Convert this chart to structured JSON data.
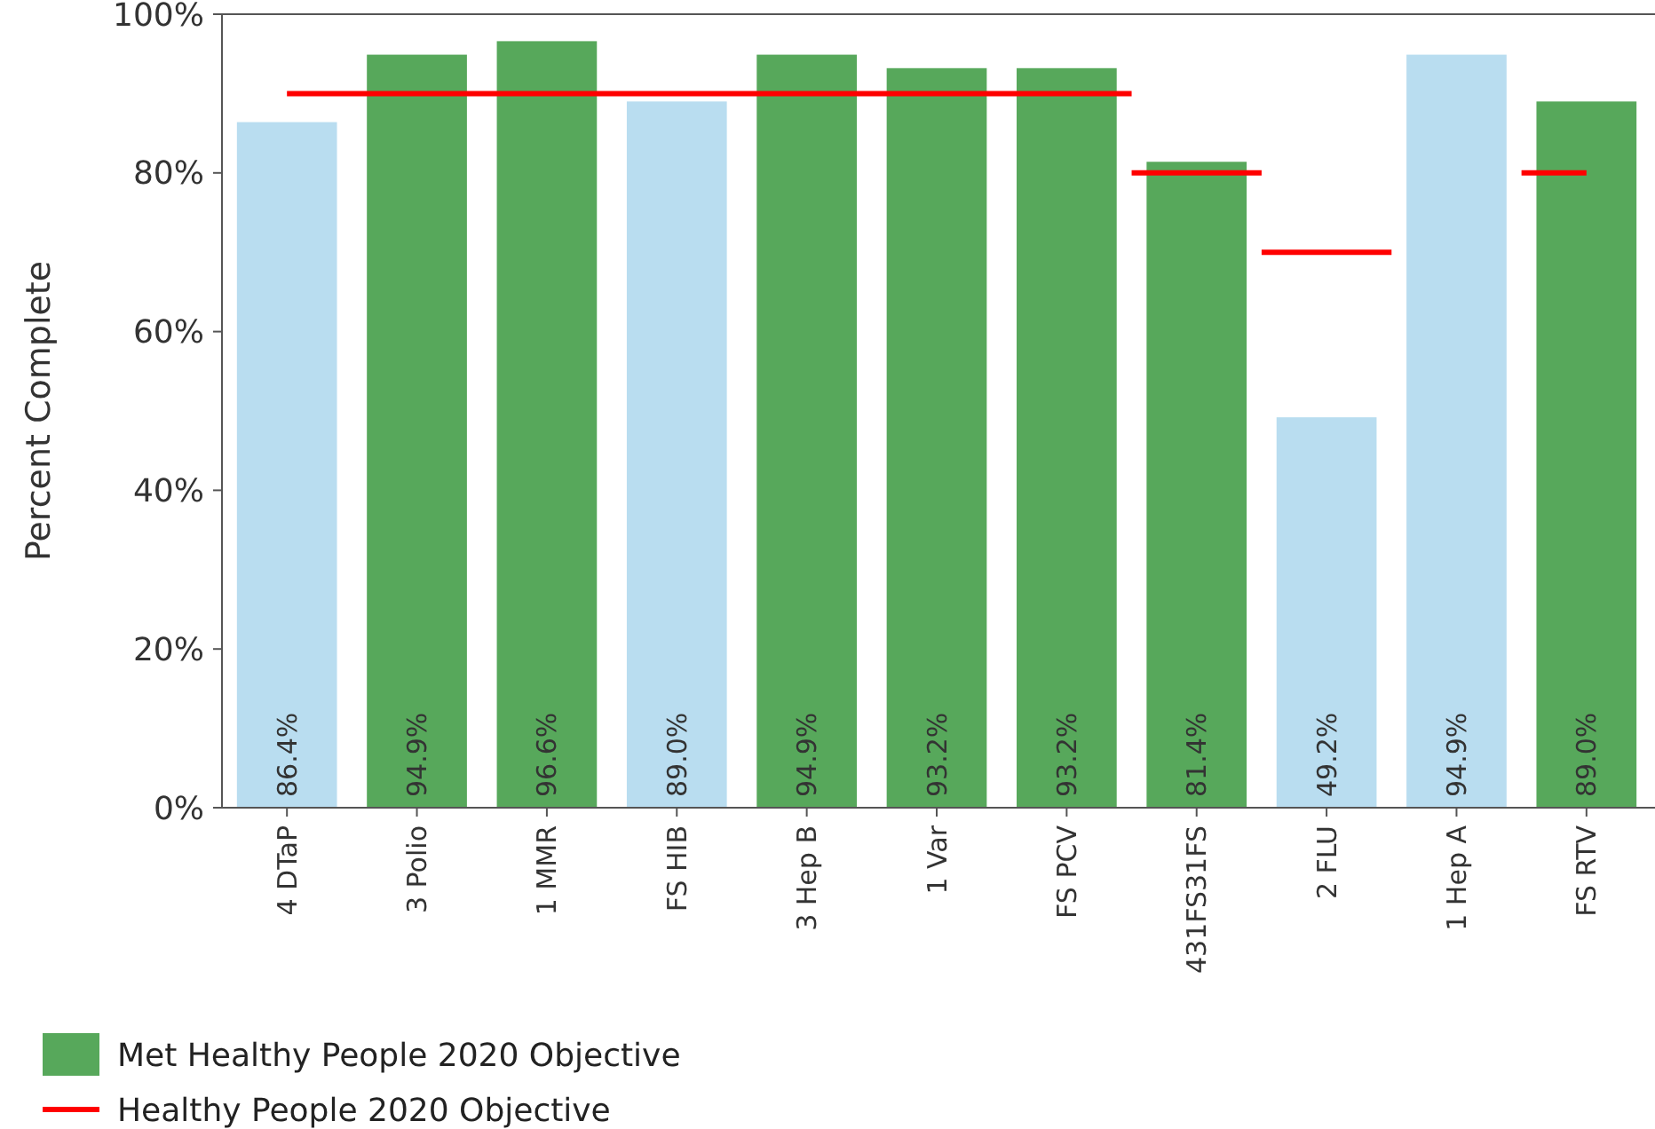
{
  "chart_data": {
    "type": "bar",
    "ylabel": "Percent Complete",
    "categories": [
      "4 DTaP",
      "3 Polio",
      "1 MMR",
      "FS HIB",
      "3 Hep B",
      "1 Var",
      "FS PCV",
      "431FS31FS",
      "2 FLU",
      "1 Hep A",
      "FS RTV"
    ],
    "series": [
      {
        "name": "Met Healthy People 2020 Objective",
        "color": "#57a85b",
        "values": [
          null,
          94.9,
          96.6,
          null,
          94.9,
          93.2,
          93.2,
          81.4,
          null,
          null,
          89.0
        ],
        "value_labels": [
          null,
          "94.9%",
          "96.6%",
          null,
          "94.9%",
          "93.2%",
          "93.2%",
          "81.4%",
          null,
          null,
          "89.0%"
        ]
      },
      {
        "color": "#b9ddf0",
        "values": [
          86.4,
          null,
          null,
          89.0,
          null,
          null,
          null,
          null,
          49.2,
          94.9,
          null
        ],
        "value_labels": [
          "86.4%",
          null,
          null,
          "89.0%",
          null,
          null,
          null,
          null,
          "49.2%",
          "94.9%",
          null
        ]
      },
      {
        "name": "Healthy People 2020 Objective",
        "type": "step",
        "color": "#ff0000",
        "values": [
          90,
          90,
          90,
          90,
          90,
          90,
          90,
          80,
          70,
          null,
          80
        ]
      }
    ],
    "ylim": [
      0,
      100
    ],
    "yticks": [
      {
        "value": 0,
        "label": "0%"
      },
      {
        "value": 20,
        "label": "20%"
      },
      {
        "value": 40,
        "label": "40%"
      },
      {
        "value": 60,
        "label": "60%"
      },
      {
        "value": 80,
        "label": "80%"
      },
      {
        "value": 100,
        "label": "100%"
      }
    ],
    "grid": false,
    "legend": "bottom"
  }
}
